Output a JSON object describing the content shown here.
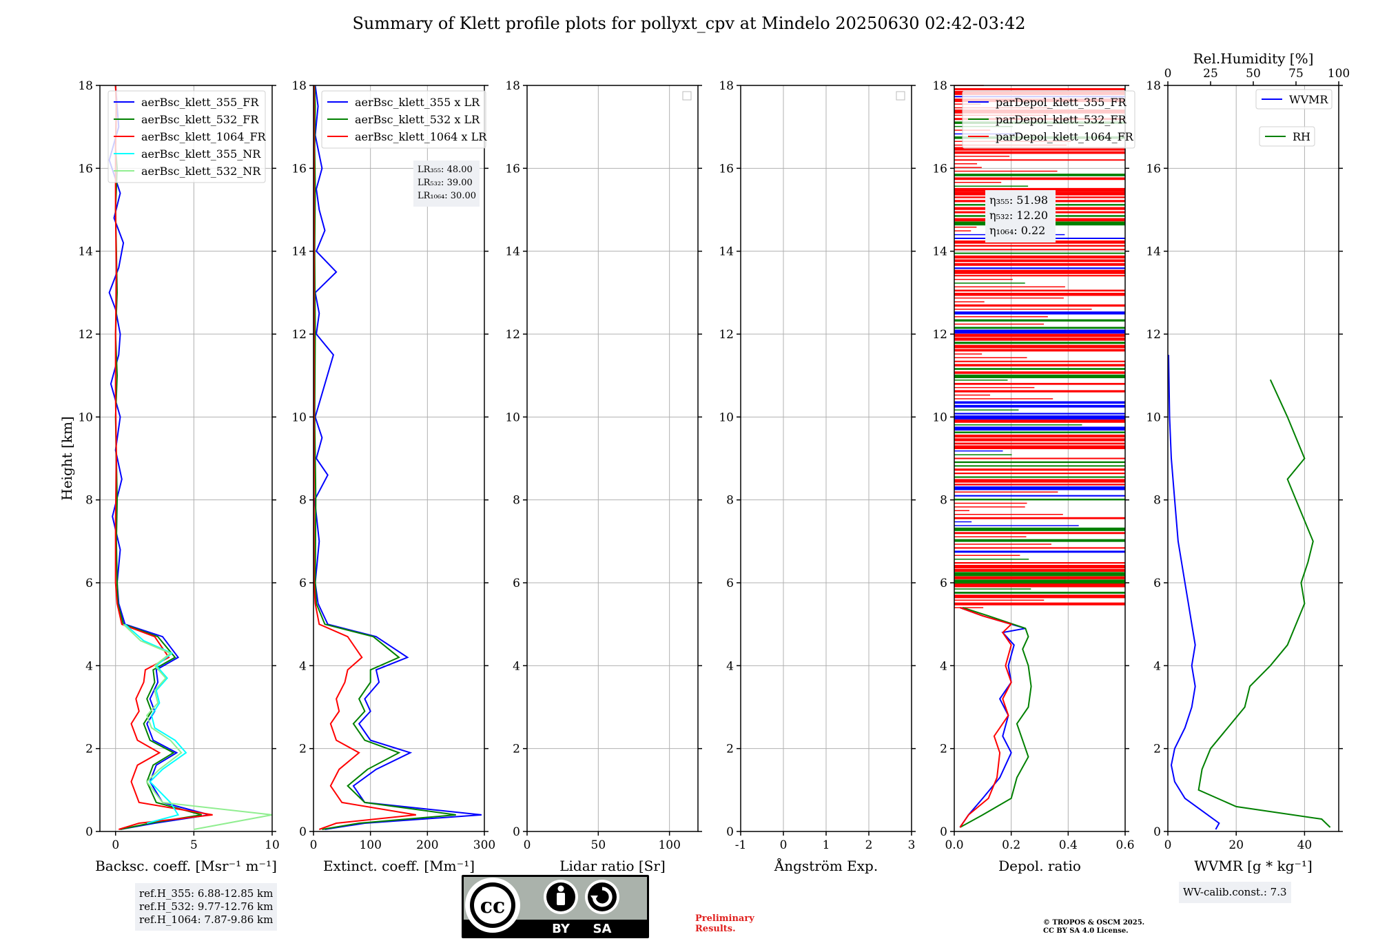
{
  "figure": {
    "title": "Summary of Klett profile plots for pollyxt_cpv at Mindelo 20250630 02:42-03:42",
    "ylabel": "Height [km]",
    "ref_heights": [
      "ref.H_355: 6.88-12.85 km",
      "ref.H_532: 9.77-12.76 km",
      "ref.H_1064: 7.87-9.86 km"
    ],
    "license_badge": {
      "by": "BY",
      "sa": "SA",
      "cc": "cc"
    },
    "preliminary": [
      "Preliminary",
      "Results."
    ],
    "copyright": [
      "© TROPOS & OSCM 2025.",
      "CC BY SA 4.0 License."
    ],
    "wv_calib": "WV-calib.const.: 7.3",
    "colors": {
      "c355": "#0000ff",
      "c532": "#008000",
      "c1064": "#ff0000",
      "c355nr": "#00ffff",
      "c532nr": "#90ee90"
    }
  },
  "chart_data": [
    {
      "id": "bsc",
      "type": "line",
      "xlabel": "Backsc. coeff. [Msr⁻¹ m⁻¹]",
      "ylabel": "Height [km]",
      "xlim": [
        -1,
        10
      ],
      "ylim": [
        0,
        18
      ],
      "xticks": [
        0,
        5,
        10
      ],
      "yticks": [
        0,
        2,
        4,
        6,
        8,
        10,
        12,
        14,
        16,
        18
      ],
      "legend": [
        "aerBsc_klett_355_FR",
        "aerBsc_klett_532_FR",
        "aerBsc_klett_1064_FR",
        "aerBsc_klett_355_NR",
        "aerBsc_klett_532_NR"
      ],
      "series": [
        {
          "name": "aerBsc_klett_355_FR",
          "color": "#0000ff",
          "x": [
            0.3,
            2.5,
            6.0,
            3.0,
            2.2,
            2.6,
            3.9,
            2.4,
            2.0,
            2.5,
            2.2,
            2.7,
            2.6,
            4.0,
            3.0,
            0.6,
            0.2,
            0.1,
            0.3,
            -0.2,
            0.4,
            0.0,
            0.3,
            -0.3,
            0.2,
            0.3,
            0.0,
            -0.4,
            0.2,
            0.5,
            -0.1,
            0.3,
            -0.4,
            0.2,
            0.0
          ],
          "y": [
            0.05,
            0.2,
            0.4,
            0.7,
            1.2,
            1.6,
            1.9,
            2.2,
            2.6,
            2.9,
            3.2,
            3.6,
            3.9,
            4.2,
            4.7,
            5.0,
            5.5,
            6.0,
            6.8,
            7.6,
            8.5,
            9.2,
            10.0,
            10.8,
            11.5,
            12.0,
            12.6,
            13.0,
            13.6,
            14.2,
            14.8,
            15.4,
            16.2,
            17.0,
            18.0
          ]
        },
        {
          "name": "aerBsc_klett_532_FR",
          "color": "#008000",
          "x": [
            0.3,
            2.2,
            5.5,
            2.6,
            2.0,
            2.4,
            3.7,
            2.2,
            1.8,
            2.3,
            2.0,
            2.5,
            2.4,
            3.8,
            2.7,
            0.5,
            0.15,
            0.1,
            0.05,
            0.1,
            0.05,
            0.0,
            0.1,
            0.0,
            0.1,
            0.05,
            0.0,
            0.1,
            0.0,
            0.05,
            0.0
          ],
          "y": [
            0.05,
            0.2,
            0.4,
            0.7,
            1.2,
            1.6,
            1.9,
            2.2,
            2.6,
            2.9,
            3.2,
            3.6,
            3.9,
            4.2,
            4.7,
            5.0,
            5.5,
            6.0,
            7.0,
            8.0,
            9.0,
            10.0,
            11.0,
            12.0,
            13.0,
            14.0,
            15.0,
            16.0,
            16.5,
            17.5,
            18.0
          ]
        },
        {
          "name": "aerBsc_klett_1064_FR",
          "color": "#ff0000",
          "x": [
            0.2,
            1.5,
            6.2,
            1.5,
            1.0,
            1.4,
            2.8,
            1.4,
            1.0,
            1.5,
            1.3,
            1.8,
            1.9,
            3.4,
            2.5,
            0.4,
            0.1,
            0.0,
            0.0,
            0.05,
            0.0,
            0.0,
            0.05,
            0.0,
            0.0,
            0.05,
            0.0
          ],
          "y": [
            0.05,
            0.2,
            0.4,
            0.7,
            1.2,
            1.6,
            1.9,
            2.2,
            2.6,
            2.9,
            3.2,
            3.6,
            3.9,
            4.2,
            4.7,
            5.0,
            5.5,
            6.0,
            7.5,
            9.0,
            10.5,
            12.0,
            13.5,
            15.0,
            16.5,
            17.5,
            18.0
          ]
        },
        {
          "name": "aerBsc_klett_355_NR",
          "color": "#00ffff",
          "x": [
            2.0,
            4.0,
            3.5,
            2.2,
            3.0,
            4.5,
            3.8,
            2.5,
            2.3,
            2.8,
            2.6,
            3.3,
            2.6,
            3.6,
            1.8,
            0.6
          ],
          "y": [
            0.2,
            0.4,
            0.7,
            1.2,
            1.5,
            1.9,
            2.2,
            2.5,
            2.8,
            3.1,
            3.4,
            3.7,
            4.0,
            4.3,
            4.6,
            5.0
          ]
        },
        {
          "name": "aerBsc_klett_532_NR",
          "color": "#90ee90",
          "x": [
            5.0,
            10.0,
            3.0,
            2.0,
            2.8,
            4.2,
            3.5,
            2.3,
            2.0,
            2.7,
            2.5,
            3.2,
            2.5,
            3.5,
            1.6,
            0.5
          ],
          "y": [
            0.05,
            0.4,
            0.7,
            1.2,
            1.5,
            1.9,
            2.2,
            2.5,
            2.8,
            3.1,
            3.4,
            3.7,
            4.0,
            4.3,
            4.6,
            5.0
          ]
        }
      ],
      "annotation": null
    },
    {
      "id": "ext",
      "type": "line",
      "xlabel": "Extinct. coeff. [Mm⁻¹]",
      "xlim": [
        0,
        300
      ],
      "ylim": [
        0,
        18
      ],
      "xticks": [
        0,
        100,
        200,
        300
      ],
      "yticks": [
        0,
        2,
        4,
        6,
        8,
        10,
        12,
        14,
        16,
        18
      ],
      "legend": [
        "aerBsc_klett_355 x LR",
        "aerBsc_klett_532 x LR",
        "aerBsc_klett_1064 x LR"
      ],
      "series": [
        {
          "name": "aerBsc_klett_355 x LR",
          "color": "#0000ff",
          "x": [
            20,
            90,
            295,
            90,
            70,
            110,
            170,
            100,
            80,
            100,
            90,
            115,
            110,
            165,
            110,
            25,
            8,
            3,
            10,
            2,
            25,
            5,
            15,
            3,
            35,
            5,
            10,
            3,
            40,
            5,
            20,
            10,
            5,
            15,
            3,
            8,
            3
          ],
          "y": [
            0.05,
            0.2,
            0.4,
            0.7,
            1.1,
            1.5,
            1.9,
            2.2,
            2.6,
            2.9,
            3.2,
            3.6,
            3.9,
            4.2,
            4.7,
            5.0,
            5.5,
            6.0,
            7.0,
            8.0,
            8.6,
            9.0,
            9.5,
            10.0,
            11.5,
            12.0,
            12.5,
            13.0,
            13.5,
            14.0,
            14.5,
            15.0,
            15.5,
            16.0,
            16.8,
            17.5,
            18.0
          ]
        },
        {
          "name": "aerBsc_klett_532 x LR",
          "color": "#008000",
          "x": [
            15,
            80,
            250,
            90,
            60,
            95,
            150,
            90,
            70,
            90,
            80,
            100,
            100,
            150,
            105,
            20,
            5,
            3,
            4,
            2,
            3,
            2,
            3,
            2,
            3,
            2
          ],
          "y": [
            0.05,
            0.2,
            0.4,
            0.7,
            1.1,
            1.5,
            1.9,
            2.2,
            2.6,
            2.9,
            3.2,
            3.6,
            3.9,
            4.2,
            4.7,
            5.0,
            5.5,
            6.0,
            8.0,
            10.0,
            12.0,
            14.0,
            15.5,
            16.5,
            17.5,
            18.0
          ]
        },
        {
          "name": "aerBsc_klett_1064 x LR",
          "color": "#ff0000",
          "x": [
            10,
            40,
            180,
            50,
            30,
            45,
            80,
            40,
            30,
            45,
            40,
            55,
            60,
            85,
            60,
            10,
            3,
            1,
            1,
            1,
            1,
            1,
            1
          ],
          "y": [
            0.05,
            0.2,
            0.4,
            0.7,
            1.1,
            1.5,
            1.9,
            2.2,
            2.6,
            2.9,
            3.2,
            3.6,
            3.9,
            4.2,
            4.7,
            5.0,
            5.5,
            6.0,
            8.0,
            11.0,
            14.0,
            17.0,
            18.0
          ]
        }
      ],
      "annotation": {
        "lines": [
          "LR₃₅₅: 48.00",
          "LR₅₃₂: 39.00",
          "LR₁₀₆₄: 30.00"
        ]
      }
    },
    {
      "id": "lr",
      "type": "line",
      "xlabel": "Lidar ratio [Sr]",
      "xlim": [
        0,
        120
      ],
      "ylim": [
        0,
        18
      ],
      "xticks": [
        0,
        50,
        100
      ],
      "yticks": [
        0,
        2,
        4,
        6,
        8,
        10,
        12,
        14,
        16,
        18
      ],
      "legend": [],
      "series": [],
      "annotation": null,
      "empty_legend_box": true
    },
    {
      "id": "ang",
      "type": "line",
      "xlabel": "Ångström Exp.",
      "xlim": [
        -1,
        3
      ],
      "ylim": [
        0,
        18
      ],
      "xticks": [
        -1,
        0,
        1,
        2,
        3
      ],
      "yticks": [
        0,
        2,
        4,
        6,
        8,
        10,
        12,
        14,
        16,
        18
      ],
      "legend": [],
      "series": [],
      "annotation": null,
      "empty_legend_box": true
    },
    {
      "id": "dep",
      "type": "line",
      "xlabel": "Depol. ratio",
      "xlim": [
        0,
        0.6
      ],
      "ylim": [
        0,
        18
      ],
      "xticks": [
        0.0,
        0.2,
        0.4,
        0.6
      ],
      "yticks": [
        0,
        2,
        4,
        6,
        8,
        10,
        12,
        14,
        16,
        18
      ],
      "legend": [
        "parDepol_klett_355_FR",
        "parDepol_klett_532_FR",
        "parDepol_klett_1064_FR"
      ],
      "series": [
        {
          "name": "parDepol_klett_355_FR",
          "color": "#0000ff",
          "x": [
            0.02,
            0.05,
            0.1,
            0.16,
            0.2,
            0.17,
            0.19,
            0.16,
            0.2,
            0.19,
            0.21,
            0.17,
            0.25,
            0.1,
            0.02
          ],
          "y": [
            0.1,
            0.4,
            0.8,
            1.3,
            1.9,
            2.3,
            2.8,
            3.2,
            3.6,
            4.0,
            4.5,
            4.8,
            4.9,
            5.2,
            5.4
          ]
        },
        {
          "name": "parDepol_klett_532_FR",
          "color": "#008000",
          "x": [
            0.02,
            0.1,
            0.2,
            0.22,
            0.26,
            0.24,
            0.22,
            0.26,
            0.27,
            0.26,
            0.24,
            0.26,
            0.25,
            0.12,
            0.03
          ],
          "y": [
            0.1,
            0.4,
            0.8,
            1.3,
            1.8,
            2.2,
            2.6,
            3.0,
            3.5,
            4.0,
            4.4,
            4.7,
            4.9,
            5.2,
            5.4
          ]
        },
        {
          "name": "parDepol_klett_1064_FR",
          "color": "#ff0000",
          "x": [
            0.02,
            0.05,
            0.12,
            0.15,
            0.16,
            0.14,
            0.19,
            0.17,
            0.2,
            0.18,
            0.2,
            0.17,
            0.2,
            0.1,
            0.02
          ],
          "y": [
            0.1,
            0.4,
            0.8,
            1.3,
            1.9,
            2.3,
            2.8,
            3.2,
            3.6,
            4.0,
            4.5,
            4.8,
            5.0,
            5.2,
            5.4
          ]
        }
      ],
      "noise_above_km": 5.4,
      "annotation": {
        "lines": [
          "η₃₅₅: 51.98",
          "η₅₃₂: 12.20",
          "η₁₀₆₄: 0.22"
        ]
      }
    },
    {
      "id": "wv",
      "type": "line",
      "xlabel": "WVMR [g * kg⁻¹]",
      "xlim": [
        0,
        50
      ],
      "ylim": [
        0,
        18
      ],
      "xticks": [
        0,
        20,
        40
      ],
      "yticks": [
        0,
        2,
        4,
        6,
        8,
        10,
        12,
        14,
        16,
        18
      ],
      "top_axis": {
        "label": "Rel.Humidity [%]",
        "lim": [
          0,
          100
        ],
        "ticks": [
          0,
          25,
          50,
          75,
          100
        ]
      },
      "legend": [
        "WVMR",
        "RH"
      ],
      "series": [
        {
          "name": "WVMR",
          "color": "#0000ff",
          "axis": "bottom",
          "x": [
            14,
            15,
            10,
            5,
            2,
            1,
            2,
            5,
            7,
            8,
            7,
            8,
            7,
            6,
            5,
            3,
            2,
            1,
            0.5,
            0.3,
            0.2
          ],
          "y": [
            0.05,
            0.2,
            0.5,
            0.8,
            1.2,
            1.6,
            2.0,
            2.5,
            3.0,
            3.5,
            4.0,
            4.5,
            5.0,
            5.5,
            6.0,
            7.0,
            8.0,
            9.0,
            10.0,
            11.0,
            11.5
          ]
        },
        {
          "name": "RH",
          "color": "#008000",
          "axis": "top",
          "x": [
            95,
            90,
            40,
            18,
            20,
            25,
            35,
            45,
            48,
            60,
            70,
            75,
            80,
            78,
            82,
            85,
            80,
            75,
            70,
            80,
            75,
            70,
            60
          ],
          "y": [
            0.1,
            0.3,
            0.6,
            1.0,
            1.5,
            2.0,
            2.5,
            3.0,
            3.5,
            4.0,
            4.5,
            5.0,
            5.5,
            6.0,
            6.5,
            7.0,
            7.5,
            8.0,
            8.5,
            9.0,
            9.5,
            10.0,
            10.9
          ]
        }
      ],
      "annotation": null
    }
  ]
}
